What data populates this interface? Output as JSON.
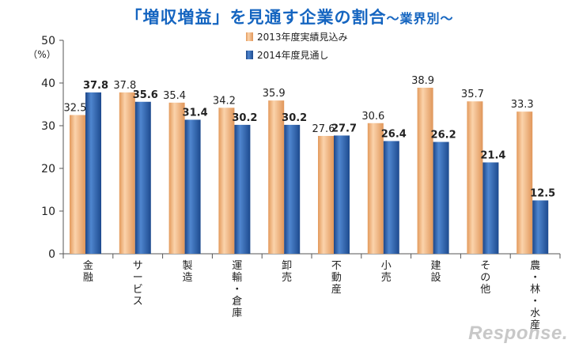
{
  "title_main": "「増収増益」を見通す企業の割合",
  "title_sub": "～業界別～",
  "watermark": "Response.",
  "chart_data": {
    "type": "bar",
    "title": "「増収増益」を見通す企業の割合～業界別～",
    "unit_label": "（%）",
    "ylim": [
      0,
      50
    ],
    "yticks": [
      0,
      10,
      20,
      30,
      40,
      50
    ],
    "grid": false,
    "legend_position": "top-center",
    "categories": [
      "金融",
      "サービス",
      "製造",
      "運輸・倉庫",
      "卸売",
      "不動産",
      "小売",
      "建設",
      "その他",
      "農・林・水産"
    ],
    "series": [
      {
        "name": "2013年度実績見込み",
        "color": "#f4c79a",
        "values": [
          32.5,
          37.8,
          35.4,
          34.2,
          35.9,
          27.6,
          30.6,
          38.9,
          35.7,
          33.3
        ]
      },
      {
        "name": "2014年度見通し",
        "color": "#3067b3",
        "values": [
          37.8,
          35.6,
          31.4,
          30.2,
          30.2,
          27.7,
          26.4,
          26.2,
          21.4,
          12.5
        ]
      }
    ]
  }
}
